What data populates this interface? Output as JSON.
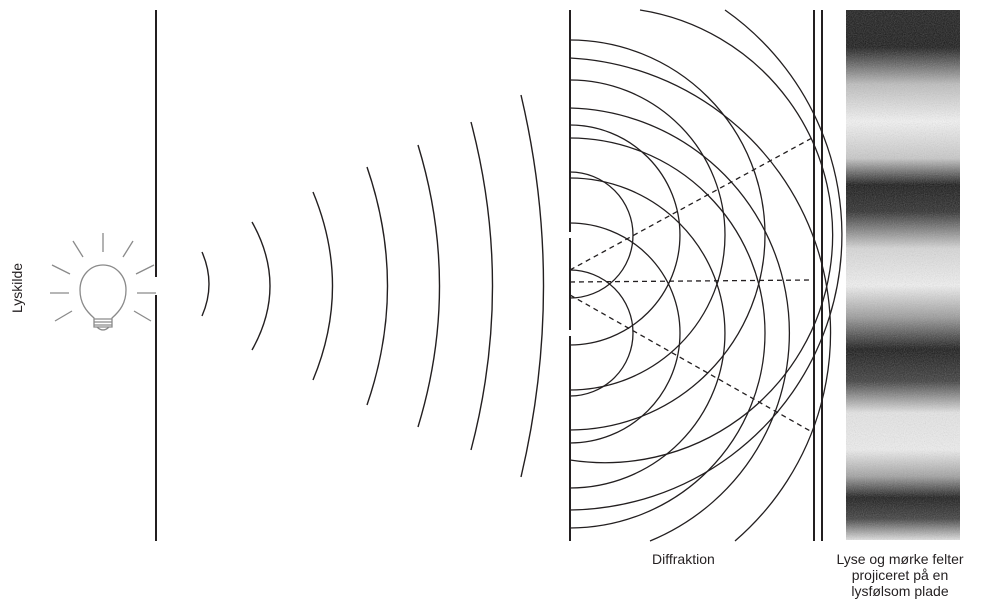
{
  "labels": {
    "light_source": "Lyskilde",
    "diffraction": "Diffraktion",
    "screen_line1": "Lyse og mørke felter",
    "screen_line2": "projiceret på en",
    "screen_line3": "lysfølsom plade"
  },
  "colors": {
    "line": "#231f20",
    "bulb": "#8a8a8a",
    "screen_dark": "#151515",
    "screen_light": "#f4f4f4"
  },
  "icons": {
    "source": "light-bulb-icon"
  }
}
